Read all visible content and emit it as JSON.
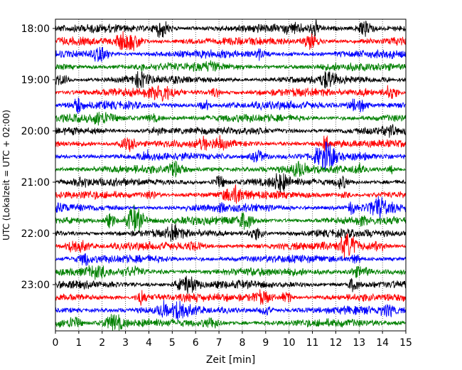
{
  "chart_data": {
    "type": "line",
    "xlabel": "Zeit  [min]",
    "ylabel": "UTC (Lokalzeit = UTC + 02:00)",
    "xlim": [
      0,
      15
    ],
    "x_ticks": [
      0,
      1,
      2,
      3,
      4,
      5,
      6,
      7,
      8,
      9,
      10,
      11,
      12,
      13,
      14,
      15
    ],
    "y_tick_labels": [
      "18:00",
      "19:00",
      "20:00",
      "21:00",
      "22:00",
      "23:00"
    ],
    "time_range": [
      "18:00",
      "24:00"
    ],
    "trace_interval_min": 15,
    "trace_count": 24,
    "grid_x": true,
    "grid_style": "dotted",
    "color_cycle": [
      "#000000",
      "#ff0000",
      "#0000ff",
      "#008000"
    ]
  }
}
